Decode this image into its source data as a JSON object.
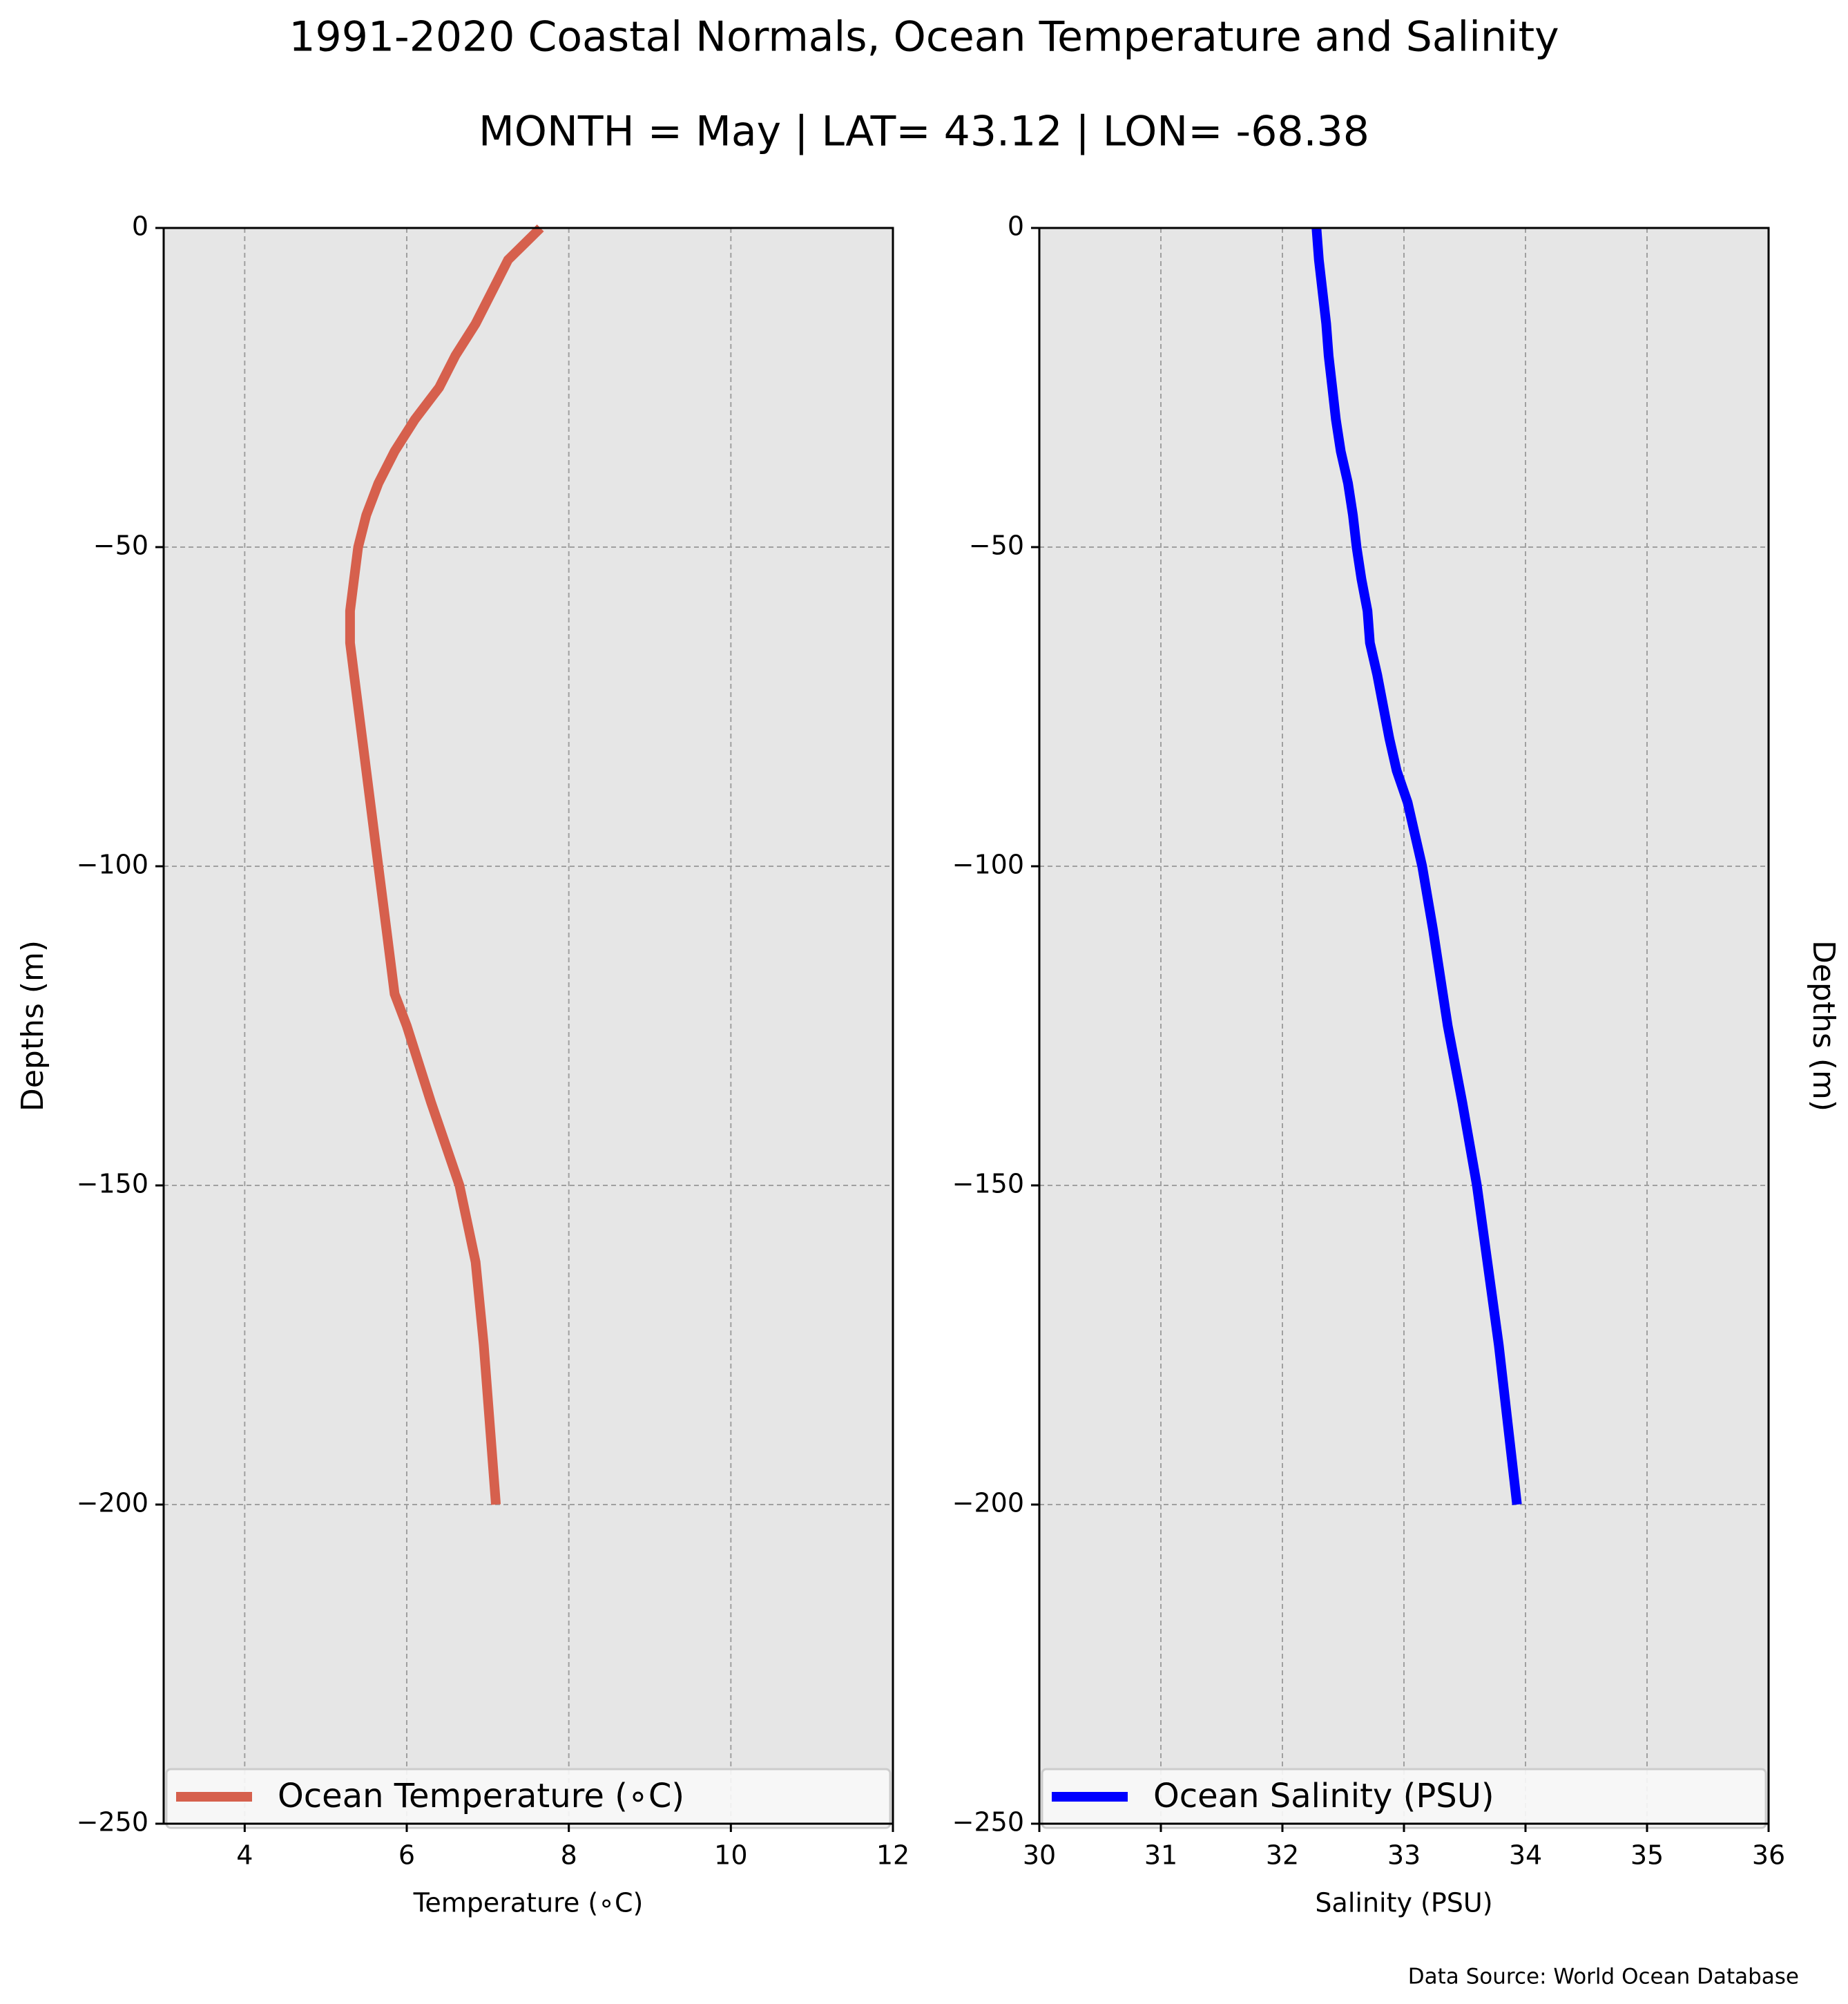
{
  "chart_data": {
    "title": "1991-2020 Coastal Normals, Ocean Temperature and Salinity",
    "subtitle": "MONTH = May | LAT= 43.12 | LON= -68.38",
    "source": "Data Source: World Ocean Database",
    "panels": [
      {
        "type": "line",
        "xlabel": "Temperature (∘C)",
        "ylabel": "Depths (m)",
        "xlim": [
          3,
          12
        ],
        "ylim": [
          -250,
          0
        ],
        "xticks": [
          4,
          6,
          8,
          10,
          12
        ],
        "xtick_labels": [
          "4",
          "6",
          "8",
          "10",
          "12"
        ],
        "yticks": [
          0,
          -50,
          -100,
          -150,
          -200,
          -250
        ],
        "ytick_labels": [
          "0",
          "−50",
          "−100",
          "−150",
          "−200",
          "−250"
        ],
        "grid": true,
        "legend_position": "lower center",
        "series": [
          {
            "name": "Ocean Temperature (∘C)",
            "color": "#d6604d",
            "x": [
              7.65,
              7.25,
              7.05,
              6.85,
              6.6,
              6.4,
              6.1,
              5.85,
              5.65,
              5.5,
              5.4,
              5.35,
              5.3,
              5.3,
              5.35,
              5.4,
              5.45,
              5.55,
              5.65,
              5.75,
              5.85,
              6.0,
              6.3,
              6.65,
              6.85,
              6.95,
              7.1
            ],
            "y": [
              0,
              -5,
              -10,
              -15,
              -20,
              -25,
              -30,
              -35,
              -40,
              -45,
              -50,
              -55,
              -60,
              -65,
              -70,
              -75,
              -80,
              -90,
              -100,
              -110,
              -120,
              -125,
              -137,
              -150,
              -162,
              -175,
              -200
            ]
          }
        ]
      },
      {
        "type": "line",
        "xlabel": "Salinity (PSU)",
        "ylabel": "Depths (m)",
        "xlim": [
          30,
          36
        ],
        "ylim": [
          -250,
          0
        ],
        "xticks": [
          30,
          31,
          32,
          33,
          34,
          35,
          36
        ],
        "xtick_labels": [
          "30",
          "31",
          "32",
          "33",
          "34",
          "35",
          "36"
        ],
        "yticks": [
          0,
          -50,
          -100,
          -150,
          -200,
          -250
        ],
        "ytick_labels": [
          "0",
          "−50",
          "−100",
          "−150",
          "−200",
          "−250"
        ],
        "grid": true,
        "legend_position": "lower center",
        "series": [
          {
            "name": "Ocean Salinity (PSU)",
            "color": "#0000ff",
            "x": [
              32.28,
              32.3,
              32.33,
              32.36,
              32.38,
              32.41,
              32.44,
              32.48,
              32.54,
              32.58,
              32.61,
              32.65,
              32.7,
              32.72,
              32.78,
              32.83,
              32.88,
              32.94,
              33.03,
              33.09,
              33.15,
              33.24,
              33.36,
              33.48,
              33.6,
              33.78,
              33.93
            ],
            "y": [
              0,
              -5,
              -10,
              -15,
              -20,
              -25,
              -30,
              -35,
              -40,
              -45,
              -50,
              -55,
              -60,
              -65,
              -70,
              -75,
              -80,
              -85,
              -90,
              -95,
              -100,
              -110,
              -125,
              -137,
              -150,
              -175,
              -200
            ]
          }
        ]
      }
    ]
  }
}
